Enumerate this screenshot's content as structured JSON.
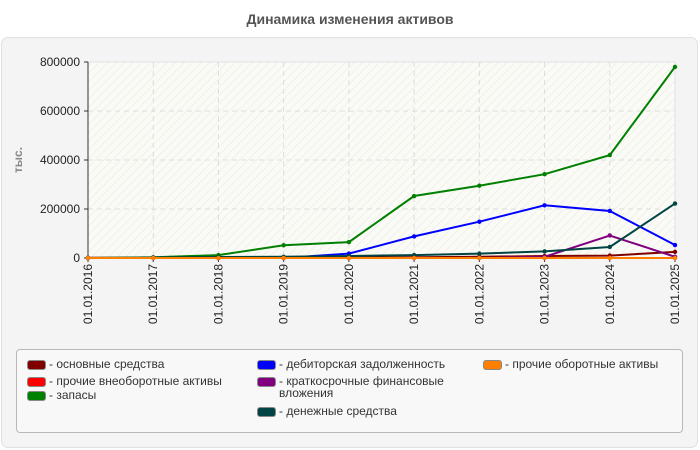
{
  "title": "Динамика изменения активов",
  "chart_data": {
    "type": "line",
    "title": "Динамика изменения активов",
    "xlabel": "",
    "ylabel": "тыс.",
    "ylim": [
      0,
      800000
    ],
    "yticks": [
      "0",
      "200000",
      "400000",
      "600000",
      "800000"
    ],
    "categories": [
      "01.01.2016",
      "01.01.2017",
      "01.01.2018",
      "01.01.2019",
      "01.01.2020",
      "01.01.2021",
      "01.01.2022",
      "01.01.2023",
      "01.01.2024",
      "01.01.2025"
    ],
    "grid": true,
    "legend_position": "bottom",
    "series": [
      {
        "name": "основные средства",
        "color": "#800000",
        "values": [
          1000,
          1000,
          1000,
          1000,
          2000,
          3000,
          5000,
          8000,
          10000,
          25000
        ]
      },
      {
        "name": "прочие внеоборотные активы",
        "color": "#ff0000",
        "values": [
          0,
          0,
          0,
          0,
          0,
          0,
          0,
          0,
          0,
          0
        ]
      },
      {
        "name": "запасы",
        "color": "#008000",
        "values": [
          0,
          3000,
          12000,
          52000,
          65000,
          253000,
          295000,
          342000,
          420000,
          780000
        ]
      },
      {
        "name": "дебиторская задолженность",
        "color": "#0000ff",
        "values": [
          0,
          0,
          0,
          0,
          18000,
          88000,
          148000,
          215000,
          192000,
          53000
        ]
      },
      {
        "name": "краткосрочные финансовые вложения",
        "color": "#800080",
        "values": [
          0,
          0,
          0,
          0,
          0,
          0,
          0,
          5000,
          92000,
          5000
        ]
      },
      {
        "name": "денежные средства",
        "color": "#004444",
        "values": [
          0,
          2000,
          4000,
          5000,
          8000,
          12000,
          18000,
          27000,
          45000,
          222000
        ]
      },
      {
        "name": "прочие оборотные активы",
        "color": "#ff8000",
        "values": [
          0,
          0,
          0,
          0,
          0,
          0,
          0,
          0,
          0,
          0
        ]
      }
    ]
  },
  "legend": {
    "items": [
      {
        "label": "- основные средства",
        "color": "#800000"
      },
      {
        "label": "- прочие внеоборотные активы",
        "color": "#ff0000"
      },
      {
        "label": "- запасы",
        "color": "#008000"
      },
      {
        "label": "- дебиторская задолженность",
        "color": "#0000ff"
      },
      {
        "label": "- краткосрочные финансовые вложения",
        "color": "#800080"
      },
      {
        "label": "- денежные средства",
        "color": "#004444"
      },
      {
        "label": "- прочие оборотные активы",
        "color": "#ff8000"
      }
    ]
  }
}
